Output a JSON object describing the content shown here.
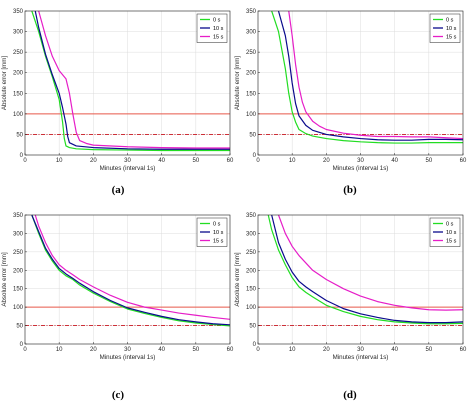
{
  "figure": {
    "panel_labels": [
      "(a)",
      "(b)",
      "(c)",
      "(d)"
    ],
    "threshold_colors": {
      "solid": "#e8584a",
      "dashdot": "#c8141e"
    }
  },
  "chart_data": [
    {
      "panel": "(a)",
      "type": "line",
      "xlabel": "Minutes (interval 1s)",
      "ylabel": "Absolute error [mm]",
      "xlim": [
        0,
        60
      ],
      "ylim": [
        0,
        350
      ],
      "xticks": [
        0,
        10,
        20,
        30,
        40,
        50,
        60
      ],
      "yticks": [
        0,
        50,
        100,
        150,
        200,
        250,
        300,
        350
      ],
      "grid": true,
      "legend_position": "top-right",
      "reference_lines": [
        {
          "y": 100,
          "style": "solid",
          "color": "#e8584a"
        },
        {
          "y": 50,
          "style": "dashdot",
          "color": "#c8141e"
        }
      ],
      "series": [
        {
          "name": "0 s",
          "color": "#22dd22",
          "x": [
            2,
            4,
            6,
            8,
            10,
            11,
            11.5,
            12,
            13,
            15,
            20,
            30,
            40,
            50,
            60
          ],
          "y": [
            350,
            300,
            240,
            190,
            135,
            80,
            40,
            22,
            18,
            15,
            13,
            12,
            11,
            11,
            11
          ]
        },
        {
          "name": "10 s",
          "color": "#0a0a8c",
          "x": [
            3,
            4,
            6,
            8,
            10,
            11,
            12,
            12.5,
            13,
            15,
            20,
            30,
            40,
            50,
            60
          ],
          "y": [
            350,
            310,
            245,
            195,
            150,
            115,
            75,
            45,
            30,
            22,
            18,
            15,
            14,
            14,
            14
          ]
        },
        {
          "name": "15 s",
          "color": "#e61ec8",
          "x": [
            4,
            6,
            8,
            10,
            12,
            13,
            14,
            15,
            16,
            18,
            20,
            30,
            40,
            50,
            60
          ],
          "y": [
            350,
            290,
            240,
            205,
            185,
            150,
            100,
            55,
            35,
            28,
            24,
            20,
            18,
            17,
            17
          ]
        }
      ]
    },
    {
      "panel": "(b)",
      "type": "line",
      "xlabel": "Minutes (interval 1s)",
      "ylabel": "Absolute error [mm]",
      "xlim": [
        0,
        60
      ],
      "ylim": [
        0,
        350
      ],
      "xticks": [
        0,
        10,
        20,
        30,
        40,
        50,
        60
      ],
      "yticks": [
        0,
        50,
        100,
        150,
        200,
        250,
        300,
        350
      ],
      "grid": true,
      "legend_position": "top-right",
      "reference_lines": [
        {
          "y": 100,
          "style": "solid",
          "color": "#e8584a"
        },
        {
          "y": 50,
          "style": "dashdot",
          "color": "#c8141e"
        }
      ],
      "series": [
        {
          "name": "0 s",
          "color": "#22dd22",
          "x": [
            4,
            6,
            8,
            9,
            10,
            11,
            12,
            14,
            16,
            20,
            25,
            30,
            35,
            40,
            45,
            50,
            55,
            60
          ],
          "y": [
            350,
            300,
            210,
            150,
            105,
            80,
            62,
            52,
            46,
            40,
            35,
            32,
            30,
            29,
            29,
            30,
            30,
            30
          ]
        },
        {
          "name": "10 s",
          "color": "#0a0a8c",
          "x": [
            6,
            8,
            9,
            10,
            11,
            12,
            14,
            16,
            20,
            25,
            30,
            35,
            40,
            45,
            50,
            55,
            60
          ],
          "y": [
            350,
            290,
            240,
            175,
            125,
            95,
            72,
            60,
            50,
            44,
            40,
            37,
            36,
            36,
            38,
            38,
            37
          ]
        },
        {
          "name": "15 s",
          "color": "#e61ec8",
          "x": [
            9,
            10,
            11,
            12,
            13,
            14,
            16,
            18,
            20,
            25,
            30,
            35,
            40,
            45,
            50,
            55,
            60
          ],
          "y": [
            350,
            290,
            220,
            165,
            128,
            105,
            82,
            70,
            62,
            53,
            48,
            45,
            45,
            44,
            44,
            42,
            40
          ]
        }
      ]
    },
    {
      "panel": "(c)",
      "type": "line",
      "xlabel": "Minutes (interval 1s)",
      "ylabel": "Absolute error [mm]",
      "xlim": [
        0,
        60
      ],
      "ylim": [
        0,
        350
      ],
      "xticks": [
        0,
        10,
        20,
        30,
        40,
        50,
        60
      ],
      "yticks": [
        0,
        50,
        100,
        150,
        200,
        250,
        300,
        350
      ],
      "grid": true,
      "legend_position": "top-right",
      "reference_lines": [
        {
          "y": 100,
          "style": "solid",
          "color": "#e8584a"
        },
        {
          "y": 50,
          "style": "dashdot",
          "color": "#c8141e"
        }
      ],
      "series": [
        {
          "name": "0 s",
          "color": "#22dd22",
          "x": [
            2,
            4,
            6,
            8,
            10,
            12,
            14,
            16,
            20,
            25,
            30,
            35,
            40,
            45,
            50,
            55,
            60
          ],
          "y": [
            350,
            300,
            255,
            225,
            200,
            185,
            175,
            160,
            138,
            115,
            95,
            83,
            72,
            63,
            57,
            53,
            49
          ]
        },
        {
          "name": "10 s",
          "color": "#0a0a8c",
          "x": [
            2,
            4,
            6,
            8,
            10,
            12,
            14,
            16,
            20,
            25,
            30,
            35,
            40,
            45,
            50,
            55,
            60
          ],
          "y": [
            350,
            305,
            260,
            230,
            205,
            190,
            178,
            165,
            142,
            118,
            98,
            86,
            75,
            66,
            60,
            55,
            52
          ]
        },
        {
          "name": "15 s",
          "color": "#e61ec8",
          "x": [
            3,
            4,
            6,
            8,
            10,
            12,
            14,
            16,
            20,
            25,
            30,
            35,
            40,
            45,
            50,
            55,
            60
          ],
          "y": [
            350,
            320,
            275,
            240,
            215,
            200,
            188,
            175,
            155,
            132,
            113,
            100,
            92,
            84,
            78,
            72,
            67
          ]
        }
      ]
    },
    {
      "panel": "(d)",
      "type": "line",
      "xlabel": "Minutes (interval 1s)",
      "ylabel": "Absolute error [mm]",
      "xlim": [
        0,
        60
      ],
      "ylim": [
        0,
        350
      ],
      "xticks": [
        0,
        10,
        20,
        30,
        40,
        50,
        60
      ],
      "yticks": [
        0,
        50,
        100,
        150,
        200,
        250,
        300,
        350
      ],
      "grid": true,
      "legend_position": "top-right",
      "reference_lines": [
        {
          "y": 100,
          "style": "solid",
          "color": "#e8584a"
        },
        {
          "y": 50,
          "style": "dashdot",
          "color": "#c8141e"
        }
      ],
      "series": [
        {
          "name": "0 s",
          "color": "#22dd22",
          "x": [
            3,
            4,
            6,
            8,
            10,
            12,
            14,
            16,
            20,
            25,
            30,
            35,
            40,
            45,
            50,
            55,
            60
          ],
          "y": [
            350,
            310,
            255,
            215,
            180,
            155,
            140,
            128,
            105,
            88,
            75,
            66,
            60,
            57,
            55,
            55,
            56
          ]
        },
        {
          "name": "10 s",
          "color": "#0a0a8c",
          "x": [
            4,
            6,
            8,
            10,
            12,
            14,
            16,
            20,
            25,
            30,
            35,
            40,
            45,
            50,
            55,
            60
          ],
          "y": [
            350,
            275,
            230,
            195,
            170,
            155,
            142,
            118,
            96,
            82,
            72,
            64,
            60,
            58,
            58,
            60
          ]
        },
        {
          "name": "15 s",
          "color": "#e61ec8",
          "x": [
            6,
            8,
            10,
            12,
            14,
            16,
            20,
            25,
            30,
            35,
            40,
            45,
            50,
            55,
            60
          ],
          "y": [
            350,
            300,
            265,
            240,
            220,
            200,
            175,
            150,
            130,
            115,
            105,
            98,
            93,
            92,
            93
          ]
        }
      ]
    }
  ]
}
